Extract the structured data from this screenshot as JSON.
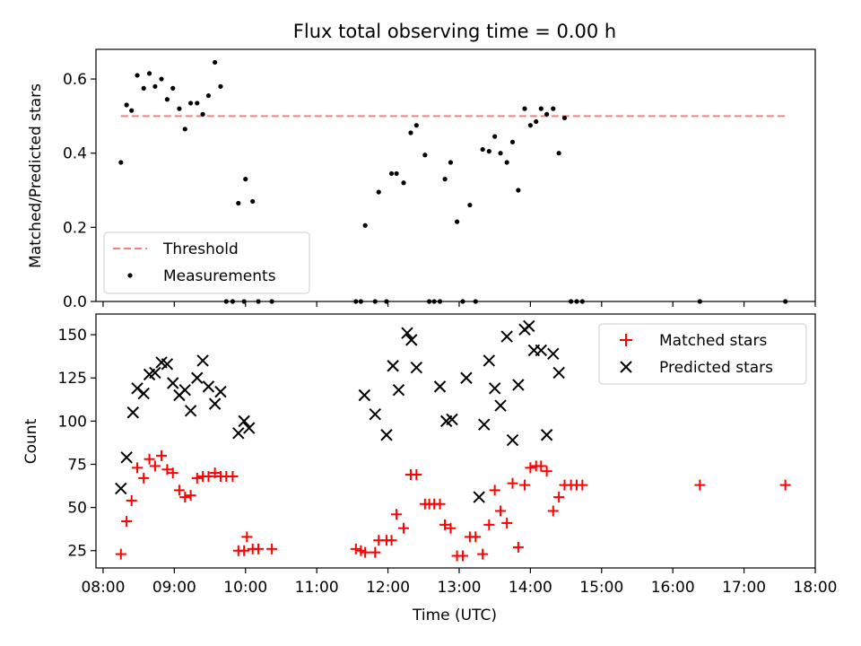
{
  "title": "Flux total observing time = 0.00 h",
  "chart_data": [
    {
      "type": "scatter",
      "ylabel": "Matched/Predicted stars",
      "xlim": [
        7.9,
        18.0
      ],
      "ylim": [
        0,
        0.68
      ],
      "yticks": [
        0.0,
        0.2,
        0.4,
        0.6
      ],
      "ytick_labels": [
        "0.0",
        "0.2",
        "0.4",
        "0.6"
      ],
      "legend": "lower-left",
      "threshold": {
        "name": "Threshold",
        "value": 0.5,
        "x": [
          8.25,
          17.6
        ],
        "color": "#f08080",
        "style": "dashed"
      },
      "series": [
        {
          "name": "Measurements",
          "marker": "dot",
          "color": "#000000",
          "x": [
            8.25,
            8.33,
            8.4,
            8.48,
            8.57,
            8.65,
            8.73,
            8.82,
            8.9,
            8.98,
            9.07,
            9.15,
            9.23,
            9.32,
            9.4,
            9.48,
            9.57,
            9.65,
            9.73,
            9.82,
            9.9,
            9.98,
            10.0,
            10.1,
            10.18,
            10.37,
            11.55,
            11.62,
            11.68,
            11.82,
            11.87,
            11.98,
            12.05,
            12.12,
            12.22,
            12.32,
            12.4,
            12.52,
            12.58,
            12.65,
            12.73,
            12.8,
            12.88,
            12.97,
            13.05,
            13.15,
            13.23,
            13.33,
            13.42,
            13.5,
            13.58,
            13.67,
            13.75,
            13.83,
            13.92,
            14.0,
            14.08,
            14.15,
            14.23,
            14.32,
            14.4,
            14.48,
            14.57,
            14.65,
            14.73,
            16.38,
            17.58
          ],
          "y": [
            0.375,
            0.53,
            0.515,
            0.61,
            0.575,
            0.615,
            0.58,
            0.6,
            0.545,
            0.575,
            0.52,
            0.465,
            0.535,
            0.535,
            0.505,
            0.555,
            0.645,
            0.58,
            0.0,
            0.0,
            0.265,
            0.0,
            0.33,
            0.27,
            0.0,
            0.0,
            0.0,
            0.0,
            0.205,
            0.0,
            0.295,
            0.0,
            0.345,
            0.345,
            0.32,
            0.455,
            0.475,
            0.395,
            0.0,
            0.0,
            0.0,
            0.33,
            0.375,
            0.215,
            0.0,
            0.26,
            0.0,
            0.41,
            0.405,
            0.445,
            0.4,
            0.375,
            0.43,
            0.3,
            0.52,
            0.475,
            0.485,
            0.52,
            0.505,
            0.52,
            0.4,
            0.495,
            0.0,
            0.0,
            0.0,
            0.0,
            0.0
          ]
        }
      ]
    },
    {
      "type": "scatter",
      "xlabel": "Time (UTC)",
      "ylabel": "Count",
      "xlim": [
        7.9,
        18.0
      ],
      "ylim": [
        15,
        162
      ],
      "xticks": [
        8,
        9,
        10,
        11,
        12,
        13,
        14,
        15,
        16,
        17,
        18
      ],
      "xtick_labels": [
        "08:00",
        "09:00",
        "10:00",
        "11:00",
        "12:00",
        "13:00",
        "14:00",
        "15:00",
        "16:00",
        "17:00",
        "18:00"
      ],
      "yticks": [
        25,
        50,
        75,
        100,
        125,
        150
      ],
      "ytick_labels": [
        "25",
        "50",
        "75",
        "100",
        "125",
        "150"
      ],
      "legend": "top-right",
      "series": [
        {
          "name": "Matched stars",
          "marker": "plus",
          "color": "#ff0000",
          "x": [
            8.25,
            8.33,
            8.4,
            8.48,
            8.57,
            8.65,
            8.73,
            8.82,
            8.9,
            8.98,
            9.07,
            9.15,
            9.23,
            9.32,
            9.4,
            9.48,
            9.57,
            9.65,
            9.73,
            9.82,
            9.9,
            9.98,
            10.02,
            10.1,
            10.18,
            10.37,
            11.55,
            11.62,
            11.68,
            11.82,
            11.87,
            11.98,
            12.05,
            12.12,
            12.22,
            12.32,
            12.4,
            12.52,
            12.58,
            12.65,
            12.73,
            12.8,
            12.88,
            12.97,
            13.05,
            13.15,
            13.23,
            13.33,
            13.42,
            13.5,
            13.58,
            13.67,
            13.75,
            13.83,
            13.92,
            14.0,
            14.08,
            14.15,
            14.23,
            14.32,
            14.4,
            14.48,
            14.57,
            14.65,
            14.73,
            16.38,
            17.58
          ],
          "y": [
            23,
            42,
            54,
            73,
            67,
            78,
            74,
            80,
            72,
            70,
            60,
            56,
            57,
            67,
            68,
            68,
            70,
            68,
            68,
            68,
            25,
            25,
            33,
            26,
            26,
            26,
            26,
            25,
            24,
            24,
            31,
            31,
            31,
            46,
            38,
            69,
            69,
            52,
            52,
            52,
            52,
            40,
            38,
            22,
            22,
            33,
            33,
            23,
            40,
            60,
            48,
            41,
            64,
            27,
            63,
            73,
            74,
            74,
            71,
            48,
            56,
            63,
            63,
            63,
            63,
            63,
            63
          ]
        },
        {
          "name": "Predicted stars",
          "marker": "cross",
          "color": "#000000",
          "x": [
            8.25,
            8.33,
            8.42,
            8.48,
            8.57,
            8.65,
            8.73,
            8.82,
            8.9,
            8.98,
            9.07,
            9.15,
            9.23,
            9.32,
            9.4,
            9.48,
            9.57,
            9.65,
            9.9,
            9.98,
            10.05,
            11.67,
            11.82,
            11.98,
            12.07,
            12.15,
            12.27,
            12.33,
            12.4,
            12.73,
            12.82,
            12.9,
            13.1,
            13.28,
            13.35,
            13.42,
            13.5,
            13.58,
            13.67,
            13.75,
            13.83,
            13.92,
            13.98,
            14.05,
            14.15,
            14.23,
            14.32,
            14.4
          ],
          "y": [
            61,
            79,
            105,
            119,
            116,
            127,
            128,
            134,
            133,
            122,
            115,
            118,
            106,
            125,
            135,
            120,
            110,
            117,
            93,
            100,
            96,
            115,
            104,
            92,
            132,
            118,
            151,
            147,
            131,
            120,
            100,
            101,
            125,
            56,
            98,
            135,
            119,
            109,
            149,
            89,
            121,
            153,
            155,
            141,
            141,
            92,
            139,
            128
          ]
        }
      ]
    }
  ]
}
